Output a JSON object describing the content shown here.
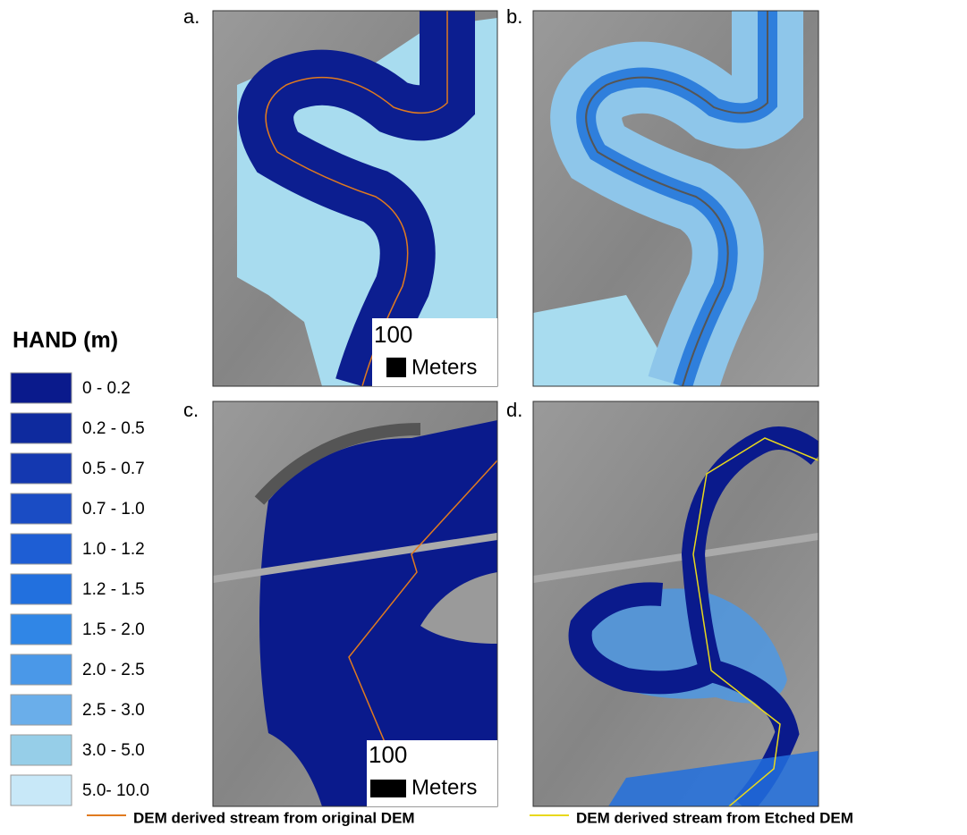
{
  "panels": [
    {
      "label": "a."
    },
    {
      "label": "b."
    },
    {
      "label": "c."
    },
    {
      "label": "d."
    }
  ],
  "scale_bars": [
    {
      "value": 100,
      "unit": "Meters"
    },
    {
      "value": 100,
      "unit": "Meters"
    }
  ],
  "legend": {
    "title": "HAND (m)",
    "items": [
      {
        "label": "0 - 0.2",
        "color": "#0a1a8c"
      },
      {
        "label": "0.2 - 0.5",
        "color": "#0e2a9e"
      },
      {
        "label": "0.5 - 0.7",
        "color": "#1438b0"
      },
      {
        "label": "0.7 - 1.0",
        "color": "#1a4cc4"
      },
      {
        "label": "1.0 - 1.2",
        "color": "#1e5ed4"
      },
      {
        "label": "1.2 - 1.5",
        "color": "#2270de"
      },
      {
        "label": "1.5 - 2.0",
        "color": "#3086e6"
      },
      {
        "label": "2.0 - 2.5",
        "color": "#4a98e8"
      },
      {
        "label": "2.5 - 3.0",
        "color": "#6aaeea"
      },
      {
        "label": "3.0 - 5.0",
        "color": "#96cee8"
      },
      {
        "label": "5.0- 10.0",
        "color": "#c8e8f8"
      }
    ]
  },
  "stream_legend": [
    {
      "label": "DEM derived stream from original DEM",
      "color": "#e07a1f"
    },
    {
      "label": "DEM derived stream from Etched DEM",
      "color": "#e8d81c"
    }
  ]
}
